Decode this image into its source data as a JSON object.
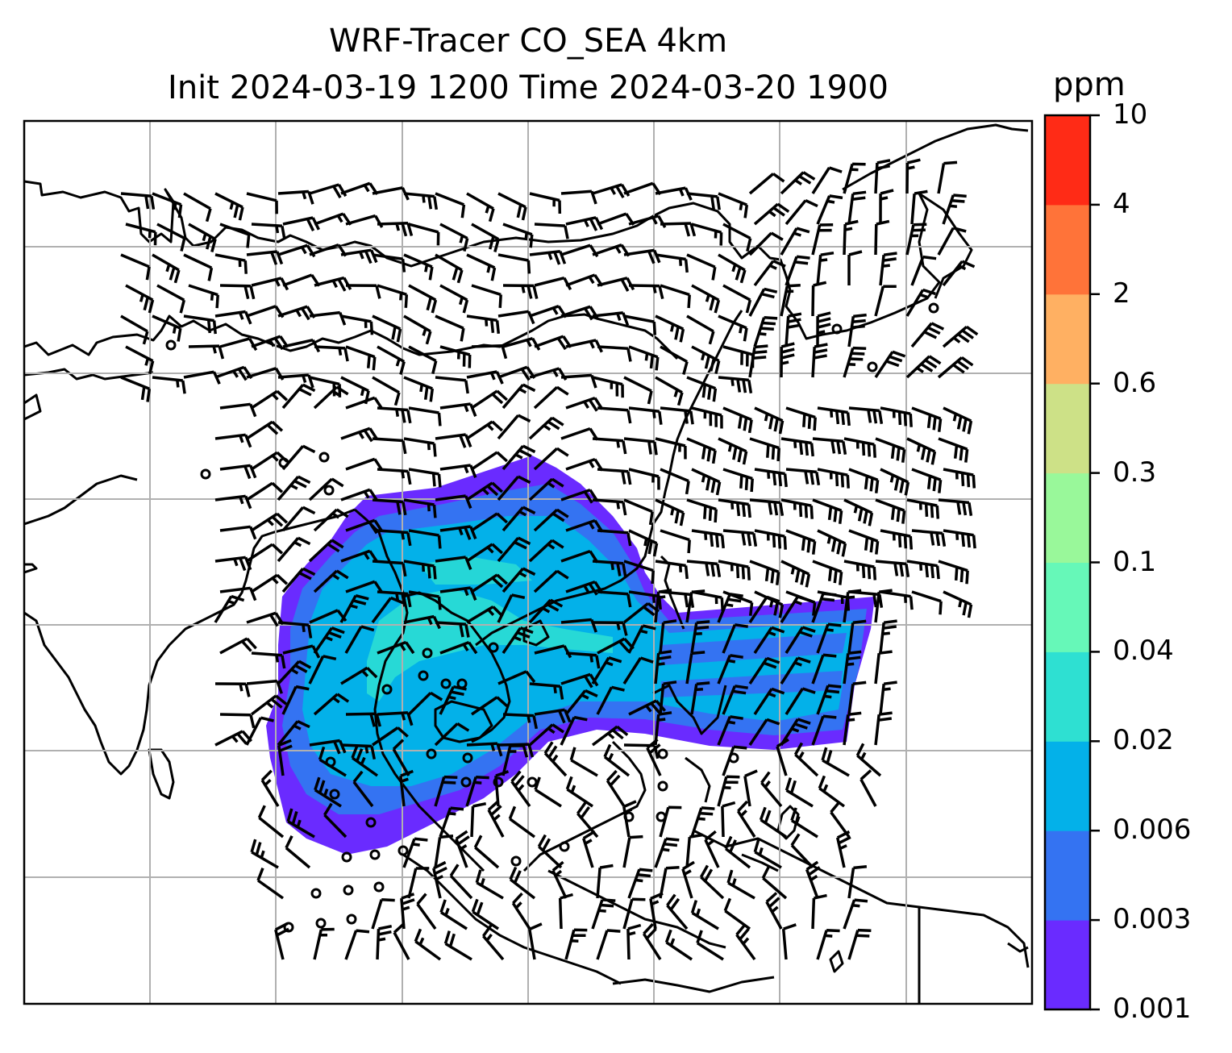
{
  "title_line1": "WRF-Tracer CO_SEA 4km",
  "title_line2": "Init 2024-03-19 1200 Time 2024-03-20 1900",
  "colorbar": {
    "unit": "ppm",
    "levels": [
      "0.001",
      "0.003",
      "0.006",
      "0.02",
      "0.04",
      "0.1",
      "0.3",
      "0.6",
      "2",
      "4",
      "10"
    ],
    "colors": [
      "#6a2bff",
      "#3473f2",
      "#03b1e9",
      "#2ee0d2",
      "#66f8b8",
      "#99f89a",
      "#cde187",
      "#ffb062",
      "#ff7339",
      "#ff2b16"
    ]
  },
  "map": {
    "gridlines": true,
    "plume_colors": {
      "outer": "#6a2bff",
      "mid": "#3473f2",
      "core": "#03b1e9",
      "peak": "#2ee0d2"
    }
  }
}
